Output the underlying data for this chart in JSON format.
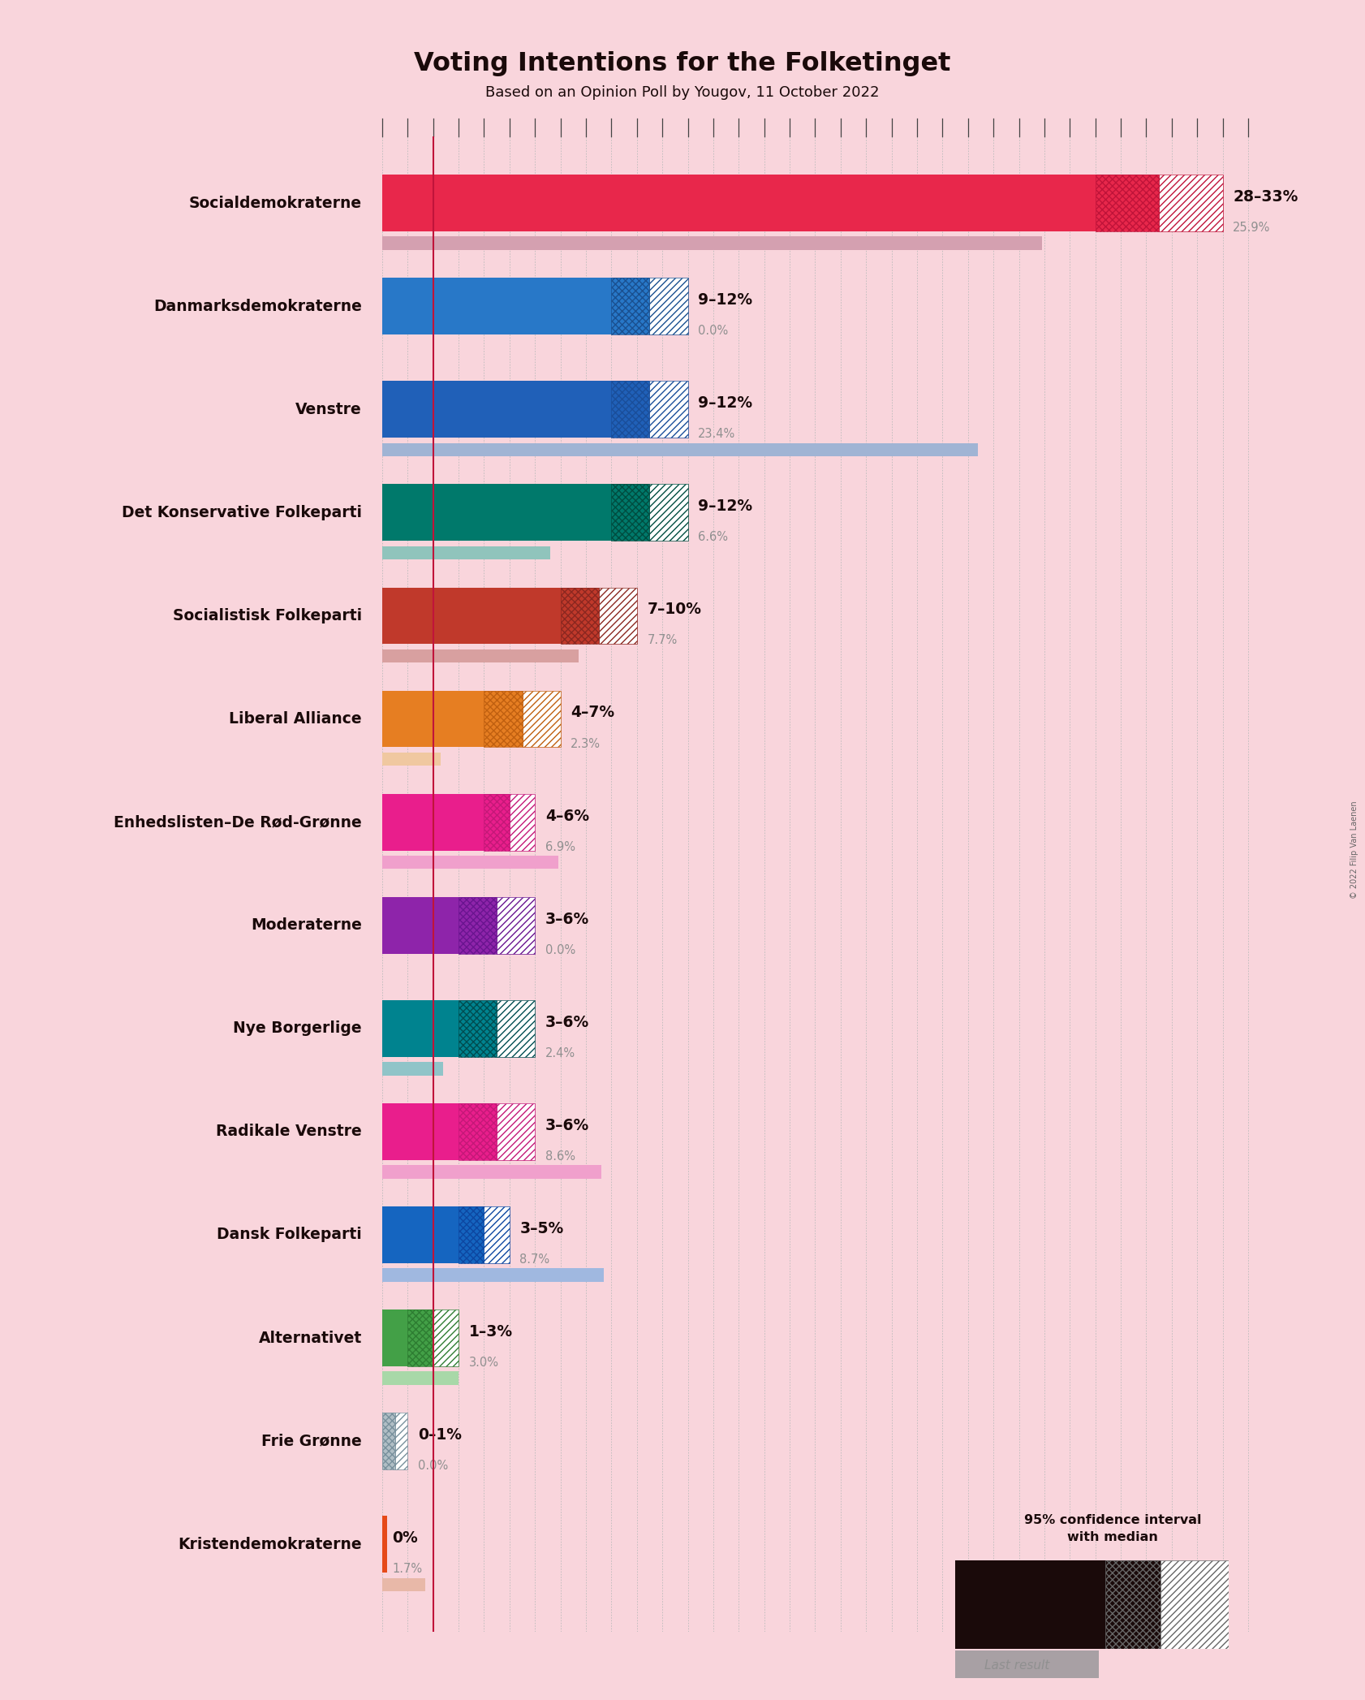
{
  "title": "Voting Intentions for the Folketinget",
  "subtitle": "Based on an Opinion Poll by Yougov, 11 October 2022",
  "background_color": "#f9d5dc",
  "parties": [
    {
      "name": "Socialdemokraterne",
      "low": 28,
      "high": 33,
      "last": 25.9,
      "color": "#e8274b",
      "hatch_color": "#c0143a",
      "last_color": "#d4a0b0"
    },
    {
      "name": "Danmarksdemokraterne",
      "low": 9,
      "high": 12,
      "last": 0.0,
      "color": "#2878c8",
      "hatch_color": "#1a5090",
      "last_color": "#aabcd8"
    },
    {
      "name": "Venstre",
      "low": 9,
      "high": 12,
      "last": 23.4,
      "color": "#2060b8",
      "hatch_color": "#1a4e9a",
      "last_color": "#a0b4d4"
    },
    {
      "name": "Det Konservative Folkeparti",
      "low": 9,
      "high": 12,
      "last": 6.6,
      "color": "#00796b",
      "hatch_color": "#004d40",
      "last_color": "#90c4bc"
    },
    {
      "name": "Socialistisk Folkeparti",
      "low": 7,
      "high": 10,
      "last": 7.7,
      "color": "#c0392b",
      "hatch_color": "#8b2720",
      "last_color": "#d8a0a0"
    },
    {
      "name": "Liberal Alliance",
      "low": 4,
      "high": 7,
      "last": 2.3,
      "color": "#e67e22",
      "hatch_color": "#c06010",
      "last_color": "#f0c8a0"
    },
    {
      "name": "Enhedslisten–De Rød-Grønne",
      "low": 4,
      "high": 6,
      "last": 6.9,
      "color": "#e91e8c",
      "hatch_color": "#c41878",
      "last_color": "#f0a0cc"
    },
    {
      "name": "Moderaterne",
      "low": 3,
      "high": 6,
      "last": 0.0,
      "color": "#8e24aa",
      "hatch_color": "#6a1590",
      "last_color": "#c8a8d8"
    },
    {
      "name": "Nye Borgerlige",
      "low": 3,
      "high": 6,
      "last": 2.4,
      "color": "#00838f",
      "hatch_color": "#004d51",
      "last_color": "#90c4c8"
    },
    {
      "name": "Radikale Venstre",
      "low": 3,
      "high": 6,
      "last": 8.6,
      "color": "#e91e8c",
      "hatch_color": "#c41878",
      "last_color": "#f0a0cc"
    },
    {
      "name": "Dansk Folkeparti",
      "low": 3,
      "high": 5,
      "last": 8.7,
      "color": "#1565c0",
      "hatch_color": "#0d47a1",
      "last_color": "#a0b8e0"
    },
    {
      "name": "Alternativet",
      "low": 1,
      "high": 3,
      "last": 3.0,
      "color": "#43a047",
      "hatch_color": "#2e7d32",
      "last_color": "#a8d8a8"
    },
    {
      "name": "Frie Grønne",
      "low": 0,
      "high": 1,
      "last": 0.0,
      "color": "#b0bec5",
      "hatch_color": "#78909c",
      "last_color": "#c8d4d8"
    },
    {
      "name": "Kristendemokraterne",
      "low": 0,
      "high": 0,
      "last": 1.7,
      "color": "#e64a19",
      "hatch_color": "#bf360c",
      "last_color": "#e8b8a8"
    }
  ],
  "x_max": 34,
  "label_color": "#1a0a0a",
  "last_text_color": "#909090",
  "red_line_x": 2.0,
  "copyright": "© 2022 Filip Van Laenen"
}
